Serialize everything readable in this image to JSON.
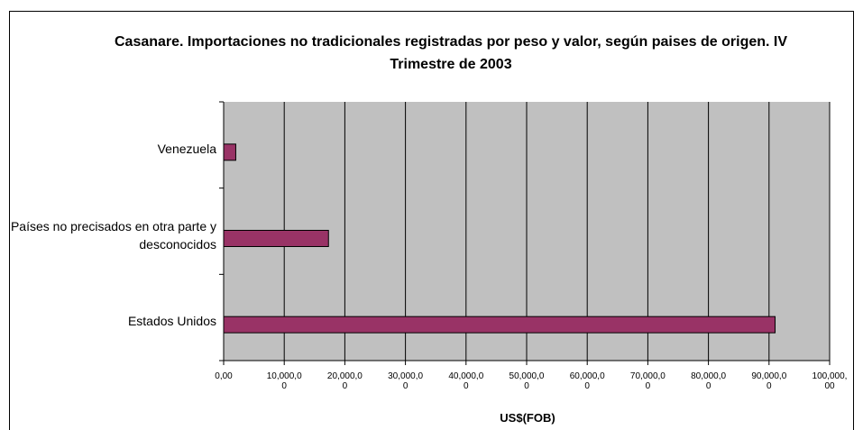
{
  "chart_data": {
    "type": "bar",
    "orientation": "horizontal",
    "title": "Casanare. Importaciones no tradicionales registradas por peso y valor, según paises de origen. IV Trimestre de 2003",
    "categories": [
      "Venezuela",
      "Países no precisados en otra parte y desconocidos",
      "Estados Unidos"
    ],
    "values": [
      2000,
      17300,
      91000
    ],
    "color": "#993366",
    "xlabel": "US$(FOB)",
    "xlim": [
      0,
      100000
    ],
    "xticks": [
      {
        "value": 0,
        "label": "0,00"
      },
      {
        "value": 10000,
        "label": "10,000,00"
      },
      {
        "value": 20000,
        "label": "20,000,00"
      },
      {
        "value": 30000,
        "label": "30,000,00"
      },
      {
        "value": 40000,
        "label": "40,000,00"
      },
      {
        "value": 50000,
        "label": "50,000,00"
      },
      {
        "value": 60000,
        "label": "60,000,00"
      },
      {
        "value": 70000,
        "label": "70,000,00"
      },
      {
        "value": 80000,
        "label": "80,000,00"
      },
      {
        "value": 90000,
        "label": "90,000,00"
      },
      {
        "value": 100000,
        "label": "100,000,00"
      }
    ],
    "grid": true
  }
}
